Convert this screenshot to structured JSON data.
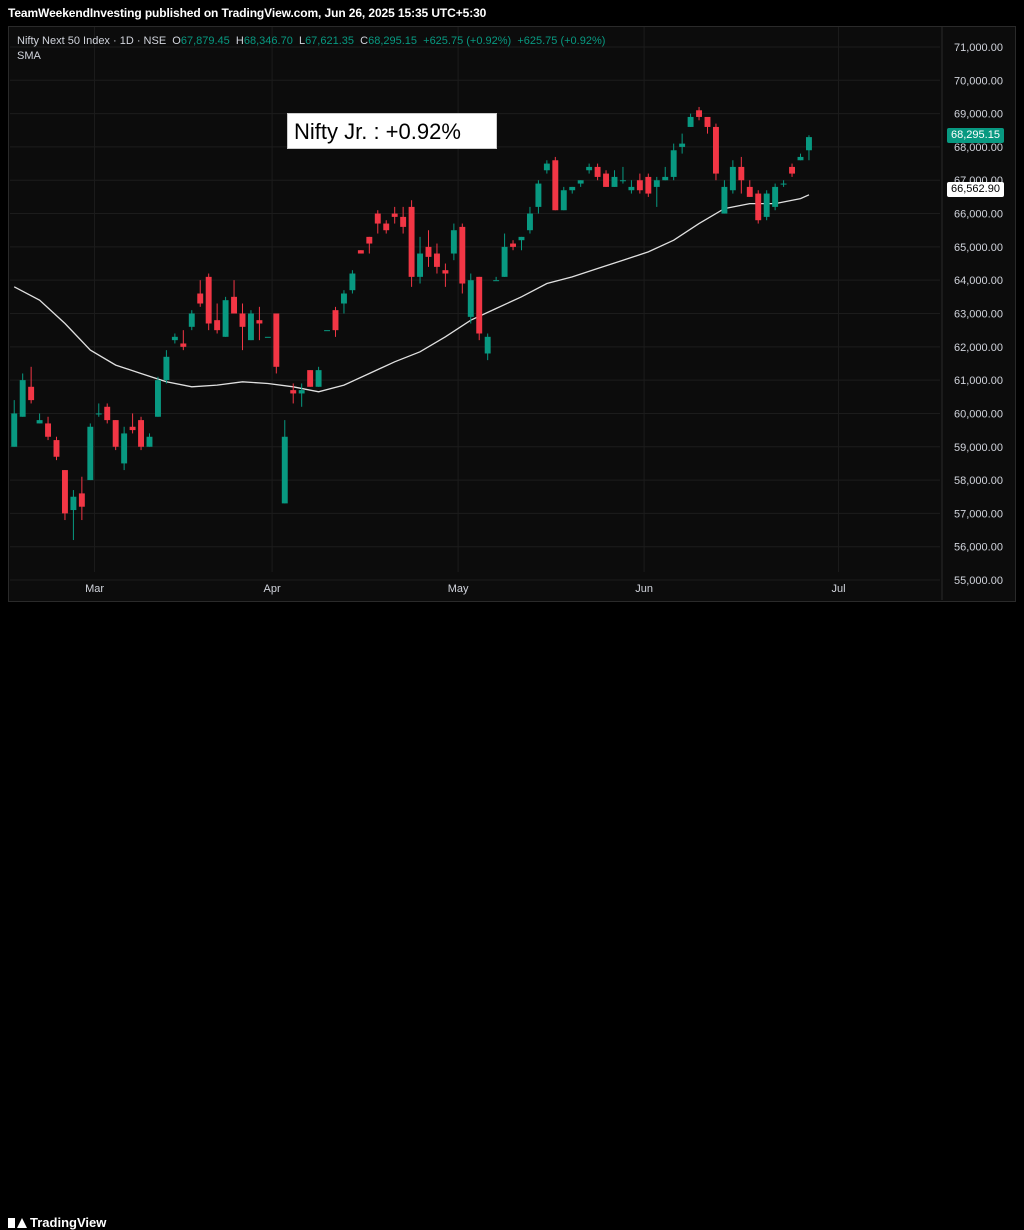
{
  "header": {
    "published_by": "TeamWeekendInvesting published on TradingView.com, Jun 26, 2025 15:35 UTC+5:30"
  },
  "legend": {
    "symbol": "Nifty Next 50 Index · 1D · NSE",
    "open_label": "O",
    "open": "67,879.45",
    "high_label": "H",
    "high": "68,346.70",
    "low_label": "L",
    "low": "67,621.35",
    "close_label": "C",
    "close": "68,295.15",
    "change": "+625.75 (+0.92%)",
    "change2": "+625.75 (+0.92%)",
    "indicator": "SMA"
  },
  "annotation": "Nifty Jr. : +0.92%",
  "price_tags": {
    "last_price": "68,295.15",
    "sma_value": "66,562.90"
  },
  "colors": {
    "up": "#089981",
    "down": "#f23645",
    "sma": "#e0e0e0",
    "background": "#0c0c0c",
    "grid": "#1c1c1c"
  },
  "footer": {
    "brand": "TradingView"
  },
  "chart_data": {
    "type": "candlestick",
    "x_labels": [
      "Mar",
      "Apr",
      "May",
      "Jun",
      "Jul"
    ],
    "y_ticks": [
      "71,000.00",
      "70,000.00",
      "69,000.00",
      "68,000.00",
      "67,000.00",
      "66,000.00",
      "65,000.00",
      "64,000.00",
      "63,000.00",
      "62,000.00",
      "61,000.00",
      "60,000.00",
      "59,000.00",
      "58,000.00",
      "57,000.00",
      "56,000.00",
      "55,000.00"
    ],
    "y_tick_values": [
      71000,
      70000,
      69000,
      68000,
      67000,
      66000,
      65000,
      64000,
      63000,
      62000,
      61000,
      60000,
      59000,
      58000,
      57000,
      56000,
      55000
    ],
    "ylim": [
      54400,
      71600
    ],
    "x_label_index": [
      9.5,
      30.5,
      52.5,
      74.5,
      97.5
    ],
    "n_slots": 110,
    "candles": [
      [
        0,
        59000,
        60400,
        59000,
        60000
      ],
      [
        1,
        59900,
        61200,
        59900,
        61000
      ],
      [
        2,
        60800,
        61400,
        60300,
        60400
      ],
      [
        3,
        59700,
        60000,
        59700,
        59800
      ],
      [
        4,
        59700,
        59900,
        59200,
        59300
      ],
      [
        5,
        59200,
        59300,
        58600,
        58700
      ],
      [
        6,
        58300,
        58300,
        56800,
        57000
      ],
      [
        7,
        57100,
        57700,
        56200,
        57500
      ],
      [
        8,
        57600,
        58100,
        56800,
        57200
      ],
      [
        9,
        58000,
        59700,
        58000,
        59600
      ],
      [
        10,
        60000,
        60300,
        59900,
        60000
      ],
      [
        11,
        60200,
        60300,
        59700,
        59800
      ],
      [
        12,
        59800,
        59800,
        58900,
        59000
      ],
      [
        13,
        58500,
        59600,
        58300,
        59400
      ],
      [
        14,
        59600,
        60000,
        59400,
        59500
      ],
      [
        15,
        59800,
        59900,
        58900,
        59000
      ],
      [
        16,
        59000,
        59400,
        59000,
        59300
      ],
      [
        17,
        59900,
        61100,
        59900,
        61000
      ],
      [
        18,
        61000,
        61900,
        60900,
        61700
      ],
      [
        19,
        62200,
        62400,
        62100,
        62300
      ],
      [
        20,
        62100,
        62500,
        61900,
        62000
      ],
      [
        21,
        62600,
        63100,
        62500,
        63000
      ],
      [
        22,
        63600,
        64000,
        63200,
        63300
      ],
      [
        23,
        64100,
        64200,
        62500,
        62700
      ],
      [
        24,
        62800,
        63300,
        62400,
        62500
      ],
      [
        25,
        62300,
        63500,
        62300,
        63400
      ],
      [
        26,
        63500,
        64000,
        63100,
        63000
      ],
      [
        27,
        63000,
        63300,
        61900,
        62600
      ],
      [
        28,
        62200,
        63100,
        62200,
        63000
      ],
      [
        29,
        62800,
        63200,
        62200,
        62700
      ],
      [
        30,
        62300,
        62300,
        62300,
        62300
      ],
      [
        31,
        63000,
        63000,
        61200,
        61400
      ],
      [
        32,
        57300,
        59800,
        57300,
        59300
      ],
      [
        33,
        60700,
        60900,
        60300,
        60600
      ],
      [
        34,
        60600,
        60900,
        60200,
        60700
      ],
      [
        35,
        61300,
        61300,
        60800,
        60800
      ],
      [
        36,
        60800,
        61400,
        60800,
        61300
      ],
      [
        37,
        62500,
        62500,
        62500,
        62500
      ],
      [
        38,
        63100,
        63200,
        62300,
        62500
      ],
      [
        39,
        63300,
        63700,
        63000,
        63600
      ],
      [
        40,
        63700,
        64300,
        63600,
        64200
      ],
      [
        41,
        64900,
        64900,
        64800,
        64800
      ],
      [
        42,
        65300,
        65300,
        64800,
        65100
      ],
      [
        43,
        66000,
        66100,
        65400,
        65700
      ],
      [
        44,
        65700,
        65800,
        65400,
        65500
      ],
      [
        45,
        66000,
        66200,
        65700,
        65900
      ],
      [
        46,
        65900,
        66200,
        65400,
        65600
      ],
      [
        47,
        66200,
        66400,
        63800,
        64100
      ],
      [
        48,
        64100,
        65300,
        63900,
        64800
      ],
      [
        49,
        65000,
        65500,
        64400,
        64700
      ],
      [
        50,
        64800,
        65100,
        64200,
        64400
      ],
      [
        51,
        64300,
        64500,
        63800,
        64200
      ],
      [
        52,
        64800,
        65700,
        64600,
        65500
      ],
      [
        53,
        65600,
        65700,
        63600,
        63900
      ],
      [
        54,
        62900,
        64200,
        62700,
        64000
      ],
      [
        55,
        64100,
        64100,
        62200,
        62400
      ],
      [
        56,
        61800,
        62400,
        61600,
        62300
      ],
      [
        57,
        64000,
        64100,
        64000,
        64000
      ],
      [
        58,
        64100,
        65400,
        64100,
        65000
      ],
      [
        59,
        65100,
        65200,
        64900,
        65000
      ],
      [
        60,
        65200,
        65300,
        64900,
        65300
      ],
      [
        61,
        65500,
        66200,
        65400,
        66000
      ],
      [
        62,
        66200,
        67000,
        66000,
        66900
      ],
      [
        63,
        67300,
        67600,
        67200,
        67500
      ],
      [
        64,
        67600,
        67700,
        66100,
        66100
      ],
      [
        65,
        66100,
        66800,
        66100,
        66700
      ],
      [
        66,
        66700,
        66800,
        66600,
        66800
      ],
      [
        67,
        66900,
        67000,
        66800,
        67000
      ],
      [
        68,
        67300,
        67500,
        67200,
        67400
      ],
      [
        69,
        67400,
        67500,
        67000,
        67100
      ],
      [
        70,
        67200,
        67300,
        66800,
        66800
      ],
      [
        71,
        66800,
        67300,
        66800,
        67100
      ],
      [
        72,
        67000,
        67400,
        66900,
        67000
      ],
      [
        73,
        66700,
        67000,
        66600,
        66800
      ],
      [
        74,
        67000,
        67200,
        66600,
        66700
      ],
      [
        75,
        67100,
        67200,
        66500,
        66600
      ],
      [
        76,
        66800,
        67100,
        66200,
        67000
      ],
      [
        77,
        67000,
        67400,
        67000,
        67100
      ],
      [
        78,
        67100,
        68100,
        67000,
        67900
      ],
      [
        79,
        68000,
        68400,
        67800,
        68100
      ],
      [
        80,
        68600,
        69000,
        68600,
        68900
      ],
      [
        81,
        69100,
        69200,
        68800,
        68900
      ],
      [
        82,
        68900,
        68900,
        68400,
        68600
      ],
      [
        83,
        68600,
        68700,
        67000,
        67200
      ],
      [
        84,
        66000,
        67000,
        66000,
        66800
      ],
      [
        85,
        66700,
        67600,
        66600,
        67400
      ],
      [
        86,
        67400,
        67700,
        66600,
        67000
      ],
      [
        87,
        66800,
        67000,
        66500,
        66500
      ],
      [
        88,
        66600,
        66700,
        65700,
        65800
      ],
      [
        89,
        65900,
        66700,
        65800,
        66600
      ],
      [
        90,
        66200,
        66900,
        66100,
        66800
      ],
      [
        91,
        66900,
        67000,
        66800,
        66900
      ],
      [
        92,
        67400,
        67500,
        67100,
        67200
      ],
      [
        93,
        67600,
        67800,
        67600,
        67700
      ],
      [
        94,
        67900,
        68350,
        67600,
        68295
      ]
    ],
    "sma": [
      [
        0,
        63800
      ],
      [
        3,
        63400
      ],
      [
        6,
        62700
      ],
      [
        9,
        61900
      ],
      [
        12,
        61450
      ],
      [
        15,
        61200
      ],
      [
        18,
        60950
      ],
      [
        21,
        60800
      ],
      [
        24,
        60850
      ],
      [
        27,
        60950
      ],
      [
        30,
        60900
      ],
      [
        33,
        60800
      ],
      [
        36,
        60650
      ],
      [
        39,
        60850
      ],
      [
        42,
        61200
      ],
      [
        45,
        61550
      ],
      [
        48,
        61850
      ],
      [
        51,
        62300
      ],
      [
        54,
        62800
      ],
      [
        57,
        63150
      ],
      [
        60,
        63500
      ],
      [
        63,
        63900
      ],
      [
        66,
        64100
      ],
      [
        69,
        64350
      ],
      [
        72,
        64600
      ],
      [
        75,
        64850
      ],
      [
        78,
        65200
      ],
      [
        81,
        65700
      ],
      [
        84,
        66150
      ],
      [
        87,
        66300
      ],
      [
        90,
        66300
      ],
      [
        93,
        66450
      ],
      [
        94,
        66563
      ]
    ]
  }
}
